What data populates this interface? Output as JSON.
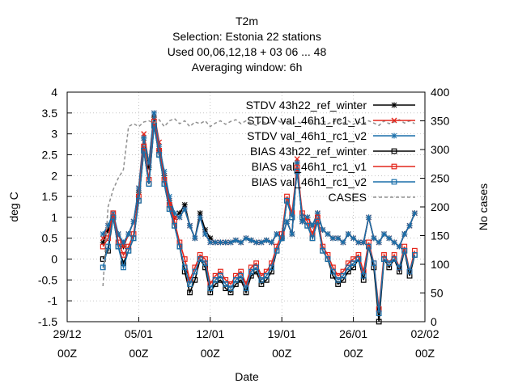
{
  "chart_data": {
    "type": "line",
    "title_lines": [
      "T2m",
      "Selection: Estonia      22 stations",
      "Used  00,06,12,18  + 03 06 ... 48",
      "Averaging window:  6h"
    ],
    "xlabel": "Date",
    "ylabel": "deg C",
    "y2label": "No cases",
    "ylim": [
      -1.5,
      4
    ],
    "y2lim": [
      0,
      400
    ],
    "xlim": [
      0,
      34
    ],
    "xticks": [
      {
        "x": 0,
        "line1": "29/12",
        "line2": "00Z"
      },
      {
        "x": 7,
        "line1": "05/01",
        "line2": "00Z"
      },
      {
        "x": 14,
        "line1": "12/01",
        "line2": "00Z"
      },
      {
        "x": 21,
        "line1": "19/01",
        "line2": "00Z"
      },
      {
        "x": 28,
        "line1": "26/01",
        "line2": "00Z"
      },
      {
        "x": 35,
        "line1": "02/02",
        "line2": "00Z"
      }
    ],
    "yticks": [
      "-1.5",
      "-1",
      "-0.5",
      "0",
      "0.5",
      "1",
      "1.5",
      "2",
      "2.5",
      "3",
      "3.5",
      "4"
    ],
    "y2ticks": [
      "0",
      "50",
      "100",
      "150",
      "200",
      "250",
      "300",
      "350",
      "400"
    ],
    "legend_position": "top-right",
    "series": [
      {
        "name": "STDV 43h22_ref_winter",
        "color": "#000000",
        "marker": "star",
        "axis": "y1",
        "x": [
          3.5,
          4,
          4.5,
          5,
          5.5,
          6,
          6.5,
          7,
          7.5,
          8,
          8.5,
          9,
          9.5,
          10,
          10.5,
          11,
          11.5,
          12,
          12.5,
          13,
          13.5,
          14,
          14.5,
          15,
          15.5,
          16,
          16.5,
          17,
          17.5,
          18,
          18.5,
          19,
          19.5,
          20,
          20.5,
          21,
          21.5,
          22,
          22.5,
          23,
          23.5,
          24,
          24.5,
          25,
          25.5,
          26,
          26.5,
          27,
          27.5,
          28,
          28.5,
          29,
          29.5,
          30,
          30.5,
          31,
          31.5,
          32,
          32.5,
          33,
          33.5,
          34
        ],
        "y": [
          0.4,
          0.7,
          1.0,
          0.6,
          0.3,
          0.6,
          0.9,
          1.6,
          2.9,
          2.2,
          3.4,
          2.6,
          2.0,
          1.4,
          1.0,
          1.1,
          1.3,
          0.8,
          0.5,
          1.1,
          0.7,
          0.5,
          0.4,
          0.4,
          0.4,
          0.4,
          0.45,
          0.4,
          0.5,
          0.45,
          0.4,
          0.4,
          0.45,
          0.4,
          0.6,
          0.5,
          0.9,
          0.6,
          2.3,
          0.9,
          1.0,
          0.8,
          1.1,
          0.7,
          0.6,
          0.5,
          0.5,
          0.4,
          0.6,
          0.5,
          0.4,
          0.4,
          1.0,
          0.5,
          0.4,
          0.6,
          0.5,
          0.4,
          0.3,
          0.6,
          0.8,
          1.1
        ]
      },
      {
        "name": "STDV val_46h1_rc1_v1",
        "color": "#e4261b",
        "marker": "x",
        "axis": "y1",
        "x": [
          3.5,
          4,
          4.5,
          5,
          5.5,
          6,
          6.5,
          7,
          7.5,
          8,
          8.5,
          9,
          9.5,
          10,
          10.5,
          11,
          11.5,
          12,
          12.5,
          13,
          13.5,
          14,
          14.5,
          15,
          15.5,
          16,
          16.5,
          17,
          17.5,
          18,
          18.5,
          19,
          19.5,
          20,
          20.5,
          21,
          21.5,
          22,
          22.5,
          23,
          23.5,
          24,
          24.5,
          25,
          25.5,
          26,
          26.5,
          27,
          27.5,
          28,
          28.5,
          29,
          29.5,
          30,
          30.5,
          31,
          31.5,
          32,
          32.5,
          33,
          33.5,
          34
        ],
        "y": [
          0.5,
          0.8,
          1.0,
          0.6,
          0.3,
          0.6,
          0.9,
          1.7,
          3.0,
          2.3,
          3.5,
          2.8,
          2.0,
          1.4,
          1.0,
          1.0,
          1.2,
          0.8,
          0.5,
          1.0,
          0.6,
          0.4,
          0.4,
          0.4,
          0.4,
          0.4,
          0.45,
          0.4,
          0.5,
          0.45,
          0.4,
          0.4,
          0.45,
          0.4,
          0.6,
          0.5,
          0.9,
          0.6,
          2.4,
          0.9,
          1.0,
          0.8,
          1.1,
          0.7,
          0.6,
          0.5,
          0.5,
          0.4,
          0.6,
          0.5,
          0.4,
          0.4,
          1.0,
          0.5,
          0.4,
          0.6,
          0.5,
          0.4,
          0.3,
          0.6,
          0.8,
          1.1
        ]
      },
      {
        "name": "STDV val_46h1_rc1_v2",
        "color": "#1a6faa",
        "marker": "star",
        "axis": "y1",
        "x": [
          3.5,
          4,
          4.5,
          5,
          5.5,
          6,
          6.5,
          7,
          7.5,
          8,
          8.5,
          9,
          9.5,
          10,
          10.5,
          11,
          11.5,
          12,
          12.5,
          13,
          13.5,
          14,
          14.5,
          15,
          15.5,
          16,
          16.5,
          17,
          17.5,
          18,
          18.5,
          19,
          19.5,
          20,
          20.5,
          21,
          21.5,
          22,
          22.5,
          23,
          23.5,
          24,
          24.5,
          25,
          25.5,
          26,
          26.5,
          27,
          27.5,
          28,
          28.5,
          29,
          29.5,
          30,
          30.5,
          31,
          31.5,
          32,
          32.5,
          33,
          33.5,
          34
        ],
        "y": [
          0.6,
          0.8,
          1.1,
          0.6,
          0.4,
          0.6,
          0.9,
          1.7,
          2.9,
          2.3,
          3.5,
          2.7,
          2.1,
          1.5,
          1.1,
          1.0,
          1.2,
          0.8,
          0.5,
          1.0,
          0.6,
          0.4,
          0.4,
          0.4,
          0.4,
          0.4,
          0.45,
          0.4,
          0.5,
          0.45,
          0.4,
          0.4,
          0.45,
          0.4,
          0.6,
          0.5,
          0.9,
          0.6,
          2.3,
          0.9,
          1.0,
          0.8,
          1.1,
          0.7,
          0.6,
          0.5,
          0.5,
          0.4,
          0.6,
          0.5,
          0.4,
          0.4,
          1.0,
          0.5,
          0.4,
          0.6,
          0.5,
          0.4,
          0.3,
          0.6,
          0.8,
          1.1
        ]
      },
      {
        "name": "BIAS 43h22_ref_winter",
        "color": "#000000",
        "marker": "square",
        "axis": "y1",
        "x": [
          3.5,
          4,
          4.5,
          5,
          5.5,
          6,
          6.5,
          7,
          7.5,
          8,
          8.5,
          9,
          9.5,
          10,
          10.5,
          11,
          11.5,
          12,
          12.5,
          13,
          13.5,
          14,
          14.5,
          15,
          15.5,
          16,
          16.5,
          17,
          17.5,
          18,
          18.5,
          19,
          19.5,
          20,
          20.5,
          21,
          21.5,
          22,
          22.5,
          23,
          23.5,
          24,
          24.5,
          25,
          25.5,
          26,
          26.5,
          27,
          27.5,
          28,
          28.5,
          29,
          29.5,
          30,
          30.5,
          31,
          31.5,
          32,
          32.5,
          33,
          33.5,
          34
        ],
        "y": [
          0.0,
          0.2,
          1.0,
          0.3,
          -0.1,
          0.2,
          0.5,
          1.4,
          2.6,
          1.8,
          3.2,
          2.5,
          1.8,
          1.2,
          0.8,
          0.3,
          -0.3,
          -0.8,
          -0.5,
          0.0,
          -0.2,
          -0.8,
          -0.6,
          -0.5,
          -0.7,
          -0.8,
          -0.6,
          -0.5,
          -0.8,
          -0.4,
          -0.3,
          -0.6,
          -0.5,
          -0.3,
          0.2,
          0.5,
          1.4,
          1.0,
          2.1,
          1.0,
          0.8,
          0.5,
          0.9,
          0.2,
          0.0,
          -0.4,
          -0.6,
          -0.5,
          -0.3,
          -0.2,
          0.0,
          -0.5,
          0.3,
          -0.2,
          -1.5,
          0.0,
          -0.2,
          0.0,
          -0.3,
          0.2,
          -0.4,
          0.1
        ]
      },
      {
        "name": "BIAS val_46h1_rc1_v1",
        "color": "#e4261b",
        "marker": "square",
        "axis": "y1",
        "x": [
          3.5,
          4,
          4.5,
          5,
          5.5,
          6,
          6.5,
          7,
          7.5,
          8,
          8.5,
          9,
          9.5,
          10,
          10.5,
          11,
          11.5,
          12,
          12.5,
          13,
          13.5,
          14,
          14.5,
          15,
          15.5,
          16,
          16.5,
          17,
          17.5,
          18,
          18.5,
          19,
          19.5,
          20,
          20.5,
          21,
          21.5,
          22,
          22.5,
          23,
          23.5,
          24,
          24.5,
          25,
          25.5,
          26,
          26.5,
          27,
          27.5,
          28,
          28.5,
          29,
          29.5,
          30,
          30.5,
          31,
          31.5,
          32,
          32.5,
          33,
          33.5,
          34
        ],
        "y": [
          0.3,
          0.5,
          1.1,
          0.4,
          0.1,
          0.3,
          0.6,
          1.5,
          2.7,
          1.9,
          3.3,
          2.6,
          1.9,
          1.3,
          0.9,
          0.4,
          0.0,
          -0.5,
          -0.2,
          0.1,
          0.0,
          -0.6,
          -0.4,
          -0.3,
          -0.5,
          -0.6,
          -0.4,
          -0.3,
          -0.6,
          -0.2,
          -0.1,
          -0.4,
          -0.3,
          -0.1,
          0.3,
          0.6,
          1.5,
          1.1,
          2.2,
          1.1,
          0.9,
          0.6,
          1.0,
          0.3,
          0.1,
          -0.2,
          -0.4,
          -0.3,
          -0.1,
          0.0,
          0.1,
          -0.3,
          0.4,
          -0.1,
          -1.2,
          0.1,
          -0.1,
          0.1,
          -0.2,
          0.3,
          -0.3,
          0.2
        ]
      },
      {
        "name": "BIAS val_46h1_rc1_v2",
        "color": "#1a6faa",
        "marker": "square",
        "axis": "y1",
        "x": [
          3.5,
          4,
          4.5,
          5,
          5.5,
          6,
          6.5,
          7,
          7.5,
          8,
          8.5,
          9,
          9.5,
          10,
          10.5,
          11,
          11.5,
          12,
          12.5,
          13,
          13.5,
          14,
          14.5,
          15,
          15.5,
          16,
          16.5,
          17,
          17.5,
          18,
          18.5,
          19,
          19.5,
          20,
          20.5,
          21,
          21.5,
          22,
          22.5,
          23,
          23.5,
          24,
          24.5,
          25,
          25.5,
          26,
          26.5,
          27,
          27.5,
          28,
          28.5,
          29,
          29.5,
          30,
          30.5,
          31,
          31.5,
          32,
          32.5,
          33,
          33.5,
          34
        ],
        "y": [
          -0.2,
          0.3,
          1.0,
          0.3,
          -0.2,
          0.2,
          0.5,
          1.4,
          2.6,
          1.8,
          3.2,
          2.5,
          1.8,
          1.2,
          0.8,
          0.3,
          -0.2,
          -0.6,
          -0.3,
          0.0,
          -0.1,
          -0.7,
          -0.5,
          -0.4,
          -0.6,
          -0.7,
          -0.5,
          -0.4,
          -0.7,
          -0.3,
          -0.2,
          -0.5,
          -0.4,
          -0.2,
          0.2,
          0.5,
          1.4,
          1.0,
          2.1,
          1.0,
          0.8,
          0.5,
          0.9,
          0.2,
          0.0,
          -0.3,
          -0.5,
          -0.4,
          -0.2,
          -0.1,
          0.0,
          -0.4,
          0.3,
          -0.1,
          -1.3,
          0.0,
          -0.1,
          0.0,
          -0.2,
          0.2,
          -0.3,
          0.1
        ]
      },
      {
        "name": "CASES",
        "color": "#909090",
        "marker": "none",
        "dashed": true,
        "axis": "y2",
        "x": [
          3.5,
          4.0,
          4.5,
          5.0,
          5.5,
          6.0,
          6.5,
          7.0,
          7.5,
          8.0,
          8.5,
          9.0,
          9.5,
          10.0,
          10.5,
          11.0,
          11.5,
          12.0,
          12.5,
          13.0,
          13.5,
          14.0,
          14.5,
          15.0,
          15.5,
          16.0,
          16.5,
          17.0,
          17.5,
          18.0,
          18.5,
          19.0,
          19.5,
          20.0,
          20.5,
          21.0,
          21.5,
          22.0,
          22.5,
          23.0,
          23.5,
          24.0,
          24.5,
          25.0,
          25.5,
          26.0,
          26.5,
          27.0,
          27.5,
          28.0,
          28.5,
          29.0,
          29.5,
          30.0,
          30.5,
          31.0,
          31.5,
          32.0,
          32.5,
          33.0,
          33.5,
          34.0
        ],
        "y": [
          62,
          200,
          230,
          250,
          265,
          340,
          345,
          340,
          348,
          350,
          346,
          352,
          340,
          350,
          354,
          345,
          350,
          340,
          348,
          345,
          350,
          340,
          346,
          350,
          344,
          349,
          352,
          345,
          350,
          346,
          342,
          350,
          345,
          348,
          352,
          346,
          350,
          344,
          348,
          345,
          350,
          346,
          342,
          350,
          345,
          348,
          352,
          346,
          350,
          344,
          348,
          345,
          350,
          346,
          342,
          350,
          345,
          348,
          352,
          346,
          350,
          345
        ]
      }
    ]
  }
}
